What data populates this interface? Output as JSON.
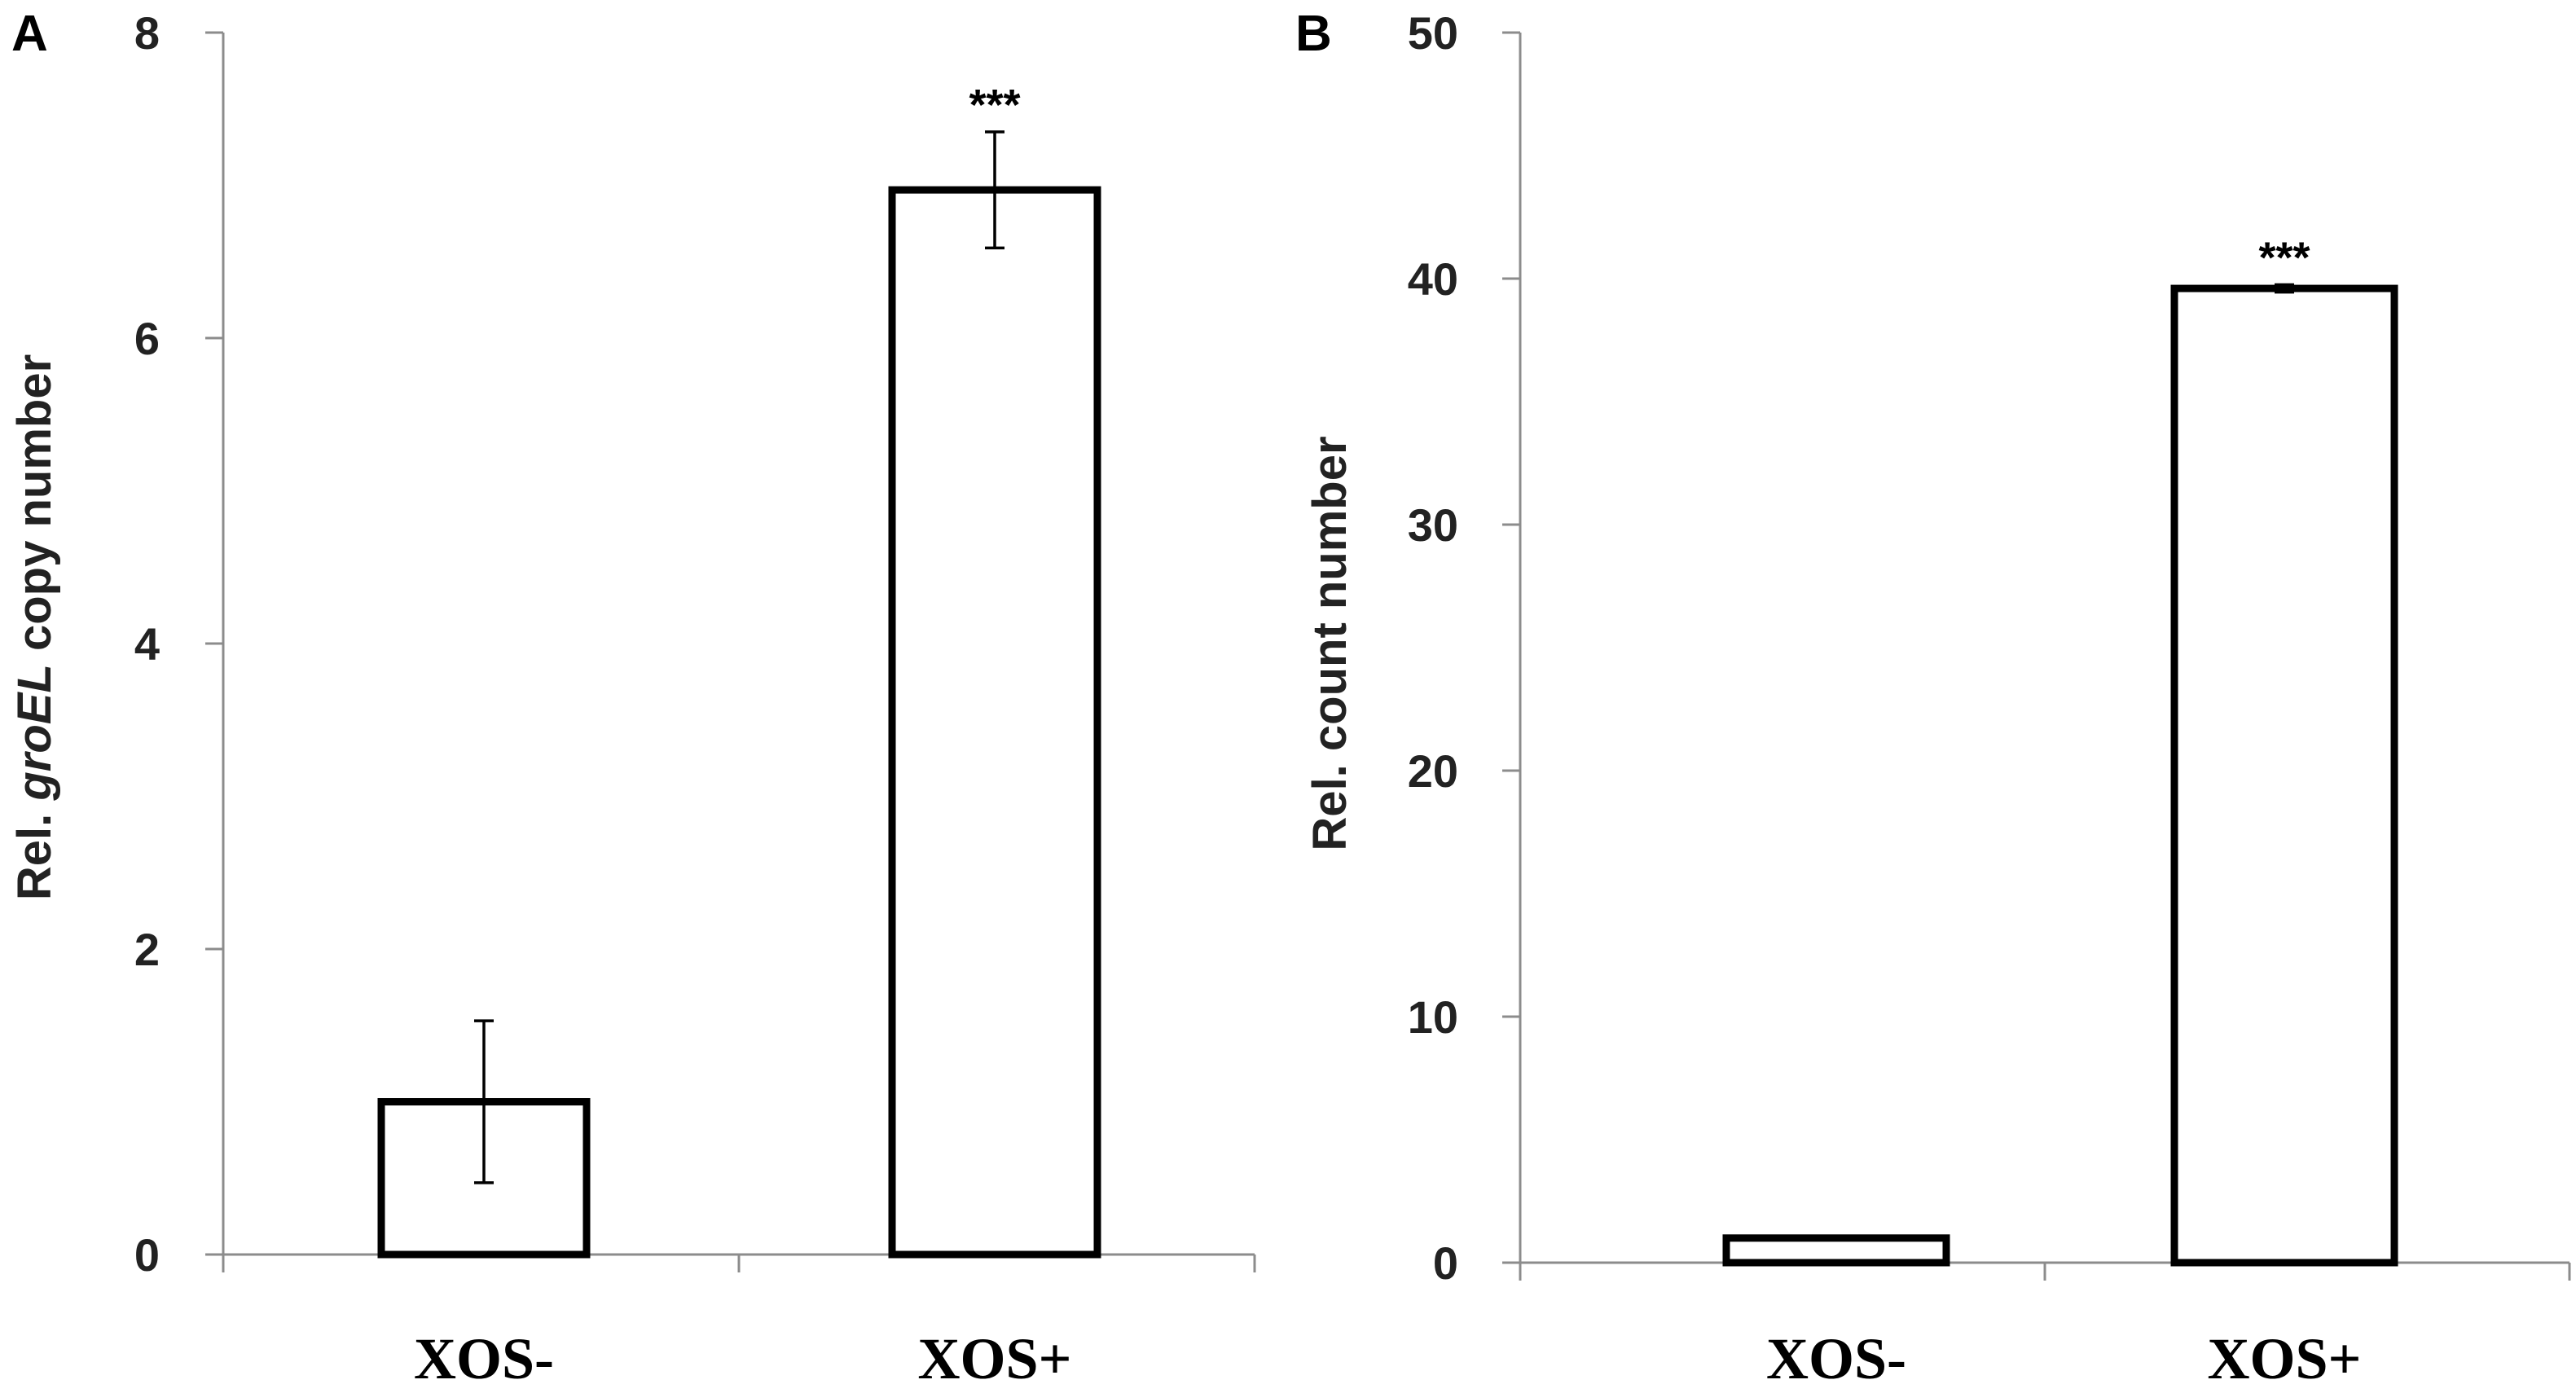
{
  "panels": [
    {
      "letter": "A",
      "ylabel_parts": [
        "Rel. ",
        "groEL",
        " copy number"
      ]
    },
    {
      "letter": "B",
      "ylabel_parts": [
        "Rel. count number"
      ]
    }
  ],
  "chart_data": [
    {
      "type": "bar",
      "panel": "A",
      "categories": [
        "XOS-",
        "XOS+"
      ],
      "values": [
        1.0,
        6.97
      ],
      "error": [
        0.53,
        0.38
      ],
      "significance": [
        "",
        "***"
      ],
      "ylabel": "Rel. groEL copy number",
      "ylim": [
        0,
        8
      ],
      "yticks": [
        0,
        2,
        4,
        6,
        8
      ],
      "grid": false,
      "bar_fill": "#ffffff",
      "bar_stroke": "#000000"
    },
    {
      "type": "bar",
      "panel": "B",
      "categories": [
        "XOS-",
        "XOS+"
      ],
      "values": [
        1.0,
        39.6
      ],
      "error": [
        0.0,
        0.15
      ],
      "significance": [
        "",
        "***"
      ],
      "ylabel": "Rel. count number",
      "ylim": [
        0,
        50
      ],
      "yticks": [
        0,
        10,
        20,
        30,
        40,
        50
      ],
      "grid": false,
      "bar_fill": "#ffffff",
      "bar_stroke": "#000000"
    }
  ]
}
